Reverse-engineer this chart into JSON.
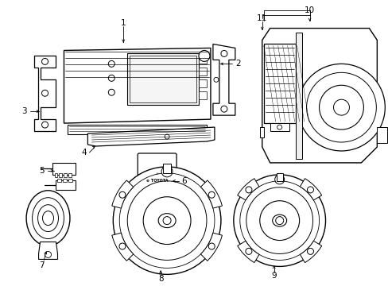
{
  "background_color": "#ffffff",
  "line_color": "#000000",
  "figsize": [
    4.89,
    3.6
  ],
  "dpi": 100,
  "label_fontsize": 7.5
}
